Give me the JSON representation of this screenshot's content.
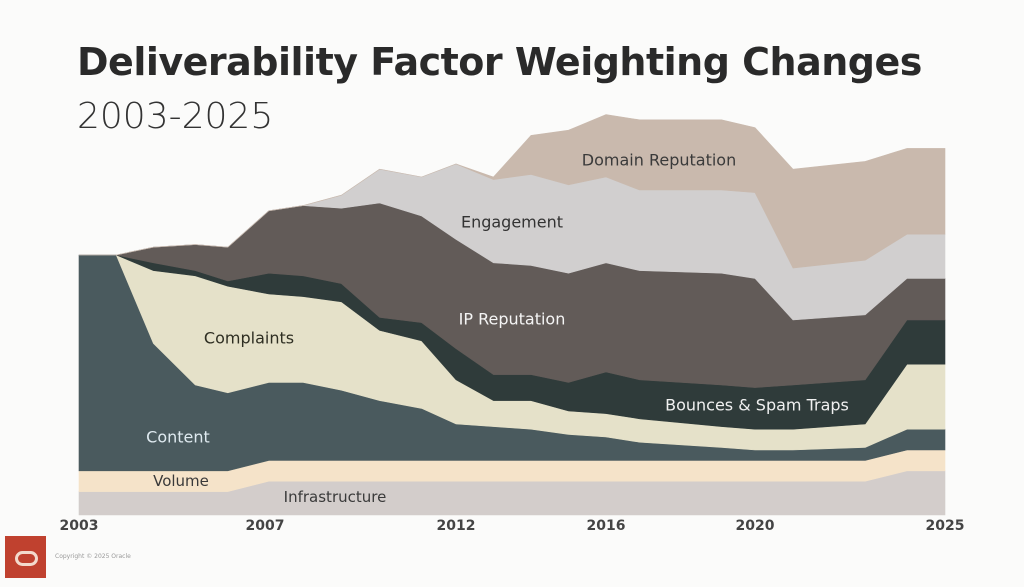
{
  "chart_data": {
    "type": "area",
    "stacked": true,
    "title": "Deliverability Factor Weighting Changes",
    "subtitle": "2003-2025",
    "xlabel": "",
    "ylabel": "",
    "x_tick_labels": [
      "2003",
      "2007",
      "2012",
      "2016",
      "2020",
      "2025"
    ],
    "xlim": [
      2003,
      2025
    ],
    "grid": false,
    "legend": "inline labels",
    "x": [
      2003,
      2003.8,
      2004.6,
      2005.5,
      2006.2,
      2007.1,
      2008,
      2009,
      2010,
      2011.1,
      2012,
      2013,
      2014,
      2015,
      2016,
      2016.9,
      2019.1,
      2020,
      2021,
      2022.9,
      2024,
      2025
    ],
    "series": [
      {
        "name": "Infrastructure",
        "color": "#d3cdcb",
        "label_color": "#3a3a3a",
        "values": [
          9,
          9,
          9,
          9,
          9,
          13,
          13,
          13,
          13,
          13,
          13,
          13,
          13,
          13,
          13,
          13,
          13,
          13,
          13,
          13,
          17,
          17
        ]
      },
      {
        "name": "Volume",
        "color": "#f5e3c9",
        "label_color": "#3a3a3a",
        "values": [
          8,
          8,
          8,
          8,
          8,
          8,
          8,
          8,
          8,
          8,
          8,
          8,
          8,
          8,
          8,
          8,
          8,
          8,
          8,
          8,
          8,
          8
        ]
      },
      {
        "name": "Content",
        "color": "#4a5a5e",
        "label_color": "#dfeaf0",
        "values": [
          83,
          83,
          49,
          33,
          30,
          30,
          30,
          27,
          23,
          20,
          14,
          13,
          12,
          10,
          9,
          7,
          5,
          4,
          4,
          5,
          8,
          8
        ]
      },
      {
        "name": "Complaints",
        "color": "#e5e1c9",
        "label_color": "#2e2e22",
        "values": [
          0,
          0,
          28,
          42,
          41,
          34,
          33,
          34,
          27,
          26,
          17,
          10,
          11,
          9,
          9,
          9,
          8,
          8,
          8,
          9,
          25,
          25
        ]
      },
      {
        "name": "Bounces & Spam Traps",
        "color": "#2f3b3a",
        "label_color": "#f0f0f0",
        "values": [
          0,
          0,
          3,
          2,
          2,
          8,
          8,
          7,
          5,
          7,
          12,
          10,
          10,
          11,
          16,
          15,
          16,
          16,
          17,
          17,
          17,
          17
        ]
      },
      {
        "name": "IP Reputation",
        "color": "#625b58",
        "label_color": "#f5f5f5",
        "values": [
          0,
          0,
          6,
          10,
          13,
          24,
          27,
          29,
          44,
          41,
          42,
          43,
          42,
          42,
          42,
          42,
          43,
          42,
          25,
          25,
          16,
          16
        ]
      },
      {
        "name": "Engagement",
        "color": "#d1cfcf",
        "label_color": "#333333",
        "values": [
          0,
          0,
          0,
          0,
          0,
          0,
          0,
          5,
          13,
          15,
          29,
          32,
          35,
          34,
          33,
          31,
          32,
          33,
          20,
          21,
          17,
          17
        ]
      },
      {
        "name": "Domain Reputation",
        "color": "#c9b9ad",
        "label_color": "#3a3a3a",
        "values": [
          0,
          0,
          0,
          0,
          0,
          0,
          0,
          0,
          0,
          0,
          0,
          1,
          15,
          21,
          24,
          27,
          27,
          25,
          38,
          38,
          33,
          33
        ]
      }
    ]
  },
  "footer": {
    "copyright": "Copyright © 2025 Oracle",
    "logo_text": "Oracle",
    "logo_color": "#c0412f"
  }
}
